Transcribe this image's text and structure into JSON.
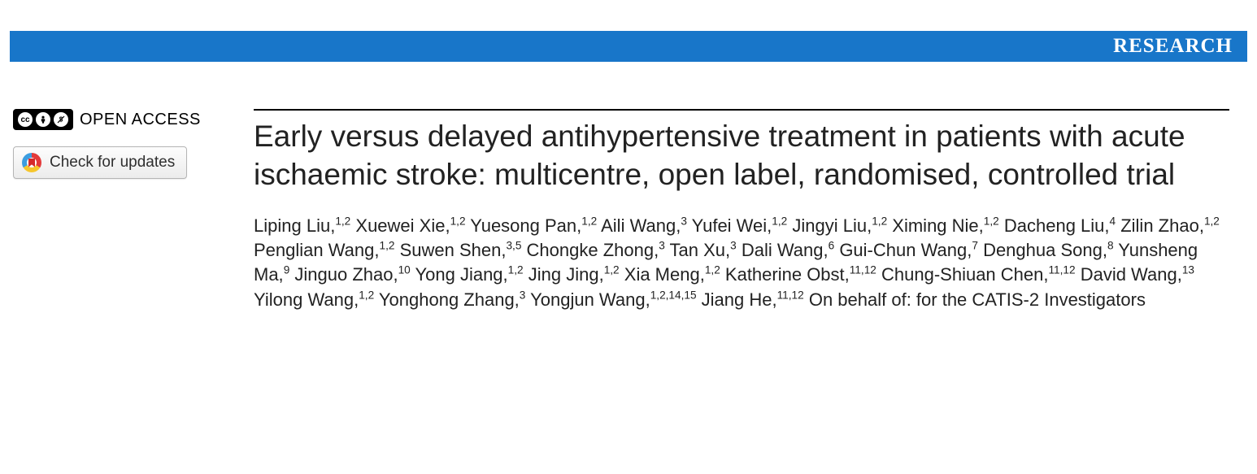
{
  "header": {
    "section_label": "RESEARCH",
    "bar_color": "#1876c9",
    "text_color": "#ffffff"
  },
  "sidebar": {
    "open_access_label": "OPEN ACCESS",
    "cc_icons": [
      "cc",
      "by",
      "nc"
    ],
    "check_updates_label": "Check for updates"
  },
  "paper": {
    "title": "Early versus delayed antihypertensive treatment in patients with acute ischaemic stroke: multicentre, open label, randomised, controlled trial",
    "authors": [
      {
        "name": "Liping Liu",
        "affil": "1,2"
      },
      {
        "name": "Xuewei Xie",
        "affil": "1,2"
      },
      {
        "name": "Yuesong Pan",
        "affil": "1,2"
      },
      {
        "name": "Aili Wang",
        "affil": "3"
      },
      {
        "name": "Yufei Wei",
        "affil": "1,2"
      },
      {
        "name": "Jingyi Liu",
        "affil": "1,2"
      },
      {
        "name": "Ximing Nie",
        "affil": "1,2"
      },
      {
        "name": "Dacheng Liu",
        "affil": "4"
      },
      {
        "name": "Zilin Zhao",
        "affil": "1,2"
      },
      {
        "name": "Penglian Wang",
        "affil": "1,2"
      },
      {
        "name": "Suwen Shen",
        "affil": "3,5"
      },
      {
        "name": "Chongke Zhong",
        "affil": "3"
      },
      {
        "name": "Tan Xu",
        "affil": "3"
      },
      {
        "name": "Dali Wang",
        "affil": "6"
      },
      {
        "name": "Gui-Chun Wang",
        "affil": "7"
      },
      {
        "name": "Denghua Song",
        "affil": "8"
      },
      {
        "name": "Yunsheng Ma",
        "affil": "9"
      },
      {
        "name": "Jinguo Zhao",
        "affil": "10"
      },
      {
        "name": "Yong Jiang",
        "affil": "1,2"
      },
      {
        "name": "Jing Jing",
        "affil": "1,2"
      },
      {
        "name": "Xia Meng",
        "affil": "1,2"
      },
      {
        "name": "Katherine Obst",
        "affil": "11,12"
      },
      {
        "name": "Chung-Shiuan Chen",
        "affil": "11,12"
      },
      {
        "name": "David Wang",
        "affil": "13"
      },
      {
        "name": "Yilong Wang",
        "affil": "1,2"
      },
      {
        "name": "Yonghong Zhang",
        "affil": "3"
      },
      {
        "name": "Yongjun Wang",
        "affil": "1,2,14,15"
      },
      {
        "name": "Jiang He",
        "affil": "11,12"
      }
    ],
    "on_behalf": "On behalf of: for the CATIS-2 Investigators"
  },
  "style": {
    "title_fontsize": 37,
    "title_color": "#222222",
    "author_fontsize": 22,
    "background": "#ffffff"
  }
}
